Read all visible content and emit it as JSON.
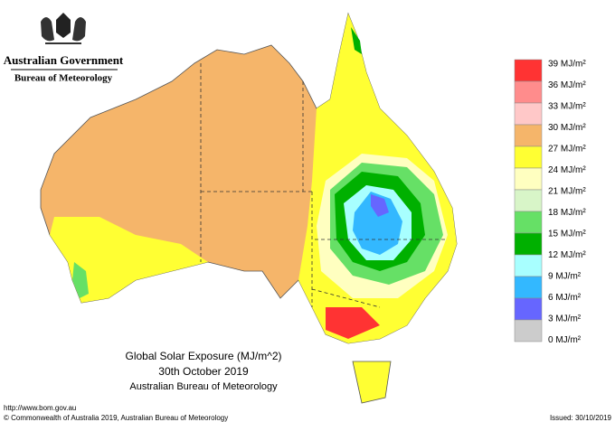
{
  "header": {
    "government": "Australian Government",
    "agency": "Bureau of Meteorology"
  },
  "map": {
    "title": "Global Solar Exposure (MJ/m^2)",
    "date": "30th October 2019",
    "source": "Australian Bureau of Meteorology"
  },
  "legend": {
    "labels": [
      "39 MJ/m²",
      "36 MJ/m²",
      "33 MJ/m²",
      "30 MJ/m²",
      "27 MJ/m²",
      "24 MJ/m²",
      "21 MJ/m²",
      "18 MJ/m²",
      "15 MJ/m²",
      "12 MJ/m²",
      "9 MJ/m²",
      "6 MJ/m²",
      "3 MJ/m²",
      "0 MJ/m²"
    ],
    "colors": [
      "#ff3333",
      "#ff8c8c",
      "#ffc8c8",
      "#f5b56a",
      "#ffff33",
      "#ffffc0",
      "#d8f5c8",
      "#66e066",
      "#00b000",
      "#a8ffff",
      "#33b8ff",
      "#6666ff",
      "#cccccc"
    ]
  },
  "footer": {
    "url": "http://www.bom.gov.au",
    "copyright": "© Commonwealth of Australia 2019, Australian Bureau of Meteorology",
    "issued": "Issued: 30/10/2019"
  }
}
